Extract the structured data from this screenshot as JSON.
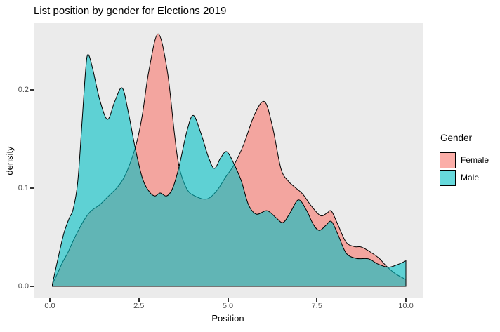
{
  "title": "List position by gender for Elections 2019",
  "panel_bg": "#EBEBEB",
  "axes": {
    "x": {
      "label": "Position",
      "tick_labels": [
        "0.0",
        "2.5",
        "5.0",
        "7.5",
        "10.0"
      ],
      "tick_values": [
        0,
        2.5,
        5,
        7.5,
        10
      ]
    },
    "y": {
      "label": "density",
      "tick_labels": [
        "0.0",
        "0.1",
        "0.2"
      ],
      "tick_values": [
        0,
        0.1,
        0.2
      ]
    }
  },
  "legend": {
    "title": "Gender",
    "items": [
      {
        "label": "Female",
        "color": "#F8766D"
      },
      {
        "label": "Male",
        "color": "#00BFC4"
      }
    ],
    "fill_alpha": 0.6
  },
  "chart_data": {
    "type": "area",
    "subtype": "overlaid-density",
    "title": "List position by gender for Elections 2019",
    "xlabel": "Position",
    "ylabel": "density",
    "xlim": [
      0,
      10
    ],
    "ylim": [
      0,
      0.26
    ],
    "grid": "off",
    "legend_position": "right",
    "outline_color": "#000000",
    "series": [
      {
        "name": "Female",
        "color": "#F8766D",
        "points": [
          [
            0.07,
            0.002
          ],
          [
            0.2,
            0.012
          ],
          [
            0.35,
            0.024
          ],
          [
            0.5,
            0.034
          ],
          [
            0.65,
            0.046
          ],
          [
            0.8,
            0.057
          ],
          [
            0.97,
            0.068
          ],
          [
            1.15,
            0.0765
          ],
          [
            1.4,
            0.083
          ],
          [
            1.65,
            0.092
          ],
          [
            1.9,
            0.101
          ],
          [
            2.1,
            0.112
          ],
          [
            2.3,
            0.13
          ],
          [
            2.45,
            0.148
          ],
          [
            2.6,
            0.175
          ],
          [
            2.78,
            0.219
          ],
          [
            3.04,
            0.257
          ],
          [
            3.3,
            0.219
          ],
          [
            3.5,
            0.155
          ],
          [
            3.63,
            0.122
          ],
          [
            3.85,
            0.099
          ],
          [
            4.1,
            0.0915
          ],
          [
            4.42,
            0.089
          ],
          [
            4.7,
            0.098
          ],
          [
            4.95,
            0.112
          ],
          [
            5.18,
            0.124
          ],
          [
            5.45,
            0.145
          ],
          [
            5.75,
            0.175
          ],
          [
            6.03,
            0.188
          ],
          [
            6.25,
            0.163
          ],
          [
            6.49,
            0.12
          ],
          [
            6.7,
            0.107
          ],
          [
            6.88,
            0.101
          ],
          [
            7.1,
            0.094
          ],
          [
            7.34,
            0.082
          ],
          [
            7.6,
            0.072
          ],
          [
            7.78,
            0.0745
          ],
          [
            7.91,
            0.0765
          ],
          [
            8.1,
            0.062
          ],
          [
            8.32,
            0.045
          ],
          [
            8.55,
            0.0405
          ],
          [
            8.75,
            0.04
          ],
          [
            9.0,
            0.035
          ],
          [
            9.25,
            0.0285
          ],
          [
            9.45,
            0.0207
          ],
          [
            9.7,
            0.013
          ],
          [
            10.0,
            0.007
          ]
        ]
      },
      {
        "name": "Male",
        "color": "#00BFC4",
        "points": [
          [
            0.07,
            0.002
          ],
          [
            0.25,
            0.032
          ],
          [
            0.4,
            0.055
          ],
          [
            0.55,
            0.07
          ],
          [
            0.65,
            0.078
          ],
          [
            0.78,
            0.105
          ],
          [
            0.9,
            0.165
          ],
          [
            1.0,
            0.218
          ],
          [
            1.07,
            0.236
          ],
          [
            1.2,
            0.222
          ],
          [
            1.4,
            0.19
          ],
          [
            1.62,
            0.17
          ],
          [
            1.82,
            0.188
          ],
          [
            2.03,
            0.202
          ],
          [
            2.2,
            0.178
          ],
          [
            2.39,
            0.142
          ],
          [
            2.6,
            0.11
          ],
          [
            2.8,
            0.096
          ],
          [
            2.95,
            0.092
          ],
          [
            3.1,
            0.095
          ],
          [
            3.28,
            0.092
          ],
          [
            3.45,
            0.1
          ],
          [
            3.63,
            0.122
          ],
          [
            3.85,
            0.158
          ],
          [
            4.03,
            0.174
          ],
          [
            4.25,
            0.155
          ],
          [
            4.45,
            0.132
          ],
          [
            4.62,
            0.12
          ],
          [
            4.8,
            0.131
          ],
          [
            4.97,
            0.137
          ],
          [
            5.18,
            0.124
          ],
          [
            5.38,
            0.107
          ],
          [
            5.58,
            0.083
          ],
          [
            5.8,
            0.0735
          ],
          [
            6.1,
            0.077
          ],
          [
            6.35,
            0.07
          ],
          [
            6.55,
            0.065
          ],
          [
            6.75,
            0.075
          ],
          [
            6.98,
            0.088
          ],
          [
            7.2,
            0.078
          ],
          [
            7.4,
            0.063
          ],
          [
            7.57,
            0.057
          ],
          [
            7.75,
            0.062
          ],
          [
            7.91,
            0.066
          ],
          [
            8.1,
            0.052
          ],
          [
            8.32,
            0.034
          ],
          [
            8.6,
            0.0285
          ],
          [
            8.95,
            0.028
          ],
          [
            9.2,
            0.023
          ],
          [
            9.5,
            0.0195
          ],
          [
            9.75,
            0.022
          ],
          [
            10.0,
            0.026
          ]
        ]
      }
    ]
  }
}
